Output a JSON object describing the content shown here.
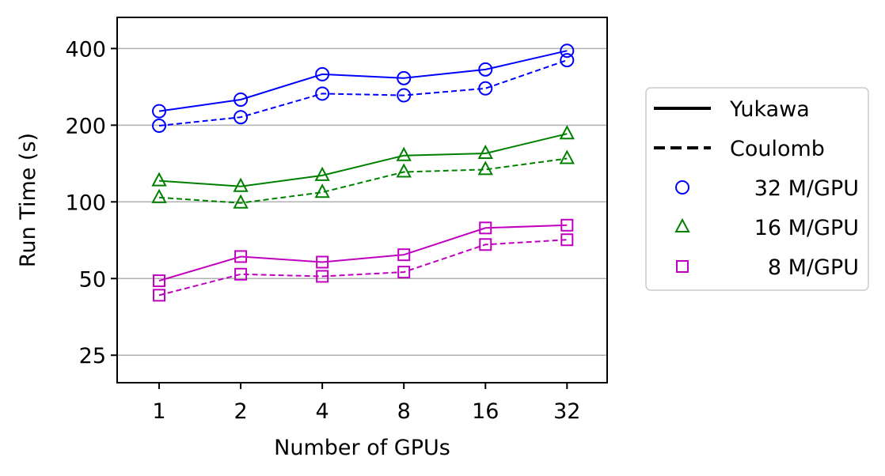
{
  "chart_data": {
    "type": "line",
    "title": "",
    "xlabel": "Number of GPUs",
    "ylabel": "Run Time (s)",
    "x_scale": "log2",
    "y_scale": "log",
    "xlim": [
      0.7,
      45
    ],
    "ylim": [
      19.5,
      530
    ],
    "categories": [
      "1",
      "2",
      "4",
      "8",
      "16",
      "32"
    ],
    "x": [
      1,
      2,
      4,
      8,
      16,
      32
    ],
    "yticks": [
      25,
      50,
      100,
      200,
      400
    ],
    "ytick_labels": [
      "25",
      "50",
      "100",
      "200",
      "400"
    ],
    "grid": "y-major",
    "legend_position": "right-outside",
    "series": [
      {
        "name": "32 M/GPU Yukawa",
        "method": "Yukawa",
        "size": "32 M/GPU",
        "color": "#0000ff",
        "marker": "circle",
        "linestyle": "solid",
        "values": [
          227,
          252,
          317,
          306,
          331,
          392
        ]
      },
      {
        "name": "32 M/GPU Coulomb",
        "method": "Coulomb",
        "size": "32 M/GPU",
        "color": "#0000ff",
        "marker": "circle",
        "linestyle": "dashed",
        "values": [
          199,
          215,
          266,
          262,
          279,
          360
        ]
      },
      {
        "name": "16 M/GPU Yukawa",
        "method": "Yukawa",
        "size": "16 M/GPU",
        "color": "#008000",
        "marker": "triangle",
        "linestyle": "solid",
        "values": [
          121,
          115,
          127,
          152,
          155,
          185
        ]
      },
      {
        "name": "16 M/GPU Coulomb",
        "method": "Coulomb",
        "size": "16 M/GPU",
        "color": "#008000",
        "marker": "triangle",
        "linestyle": "dashed",
        "values": [
          104,
          99,
          109,
          131,
          134,
          148
        ]
      },
      {
        "name": "8 M/GPU Yukawa",
        "method": "Yukawa",
        "size": "8 M/GPU",
        "color": "#bf00bf",
        "marker": "square",
        "linestyle": "solid",
        "values": [
          49,
          61,
          58,
          62,
          79,
          81
        ]
      },
      {
        "name": "8 M/GPU Coulomb",
        "method": "Coulomb",
        "size": "8 M/GPU",
        "color": "#bf00bf",
        "marker": "square",
        "linestyle": "dashed",
        "values": [
          43,
          52,
          51,
          53,
          68,
          71
        ]
      }
    ],
    "legend": [
      {
        "label": "Yukawa",
        "kind": "line",
        "linestyle": "solid",
        "color": "#000000"
      },
      {
        "label": "Coulomb",
        "kind": "line",
        "linestyle": "dashed",
        "color": "#000000"
      },
      {
        "label": "32 M/GPU",
        "kind": "marker",
        "marker": "circle",
        "color": "#0000ff"
      },
      {
        "label": "16 M/GPU",
        "kind": "marker",
        "marker": "triangle",
        "color": "#008000"
      },
      {
        "label": "8 M/GPU",
        "kind": "marker",
        "marker": "square",
        "color": "#bf00bf"
      }
    ]
  }
}
